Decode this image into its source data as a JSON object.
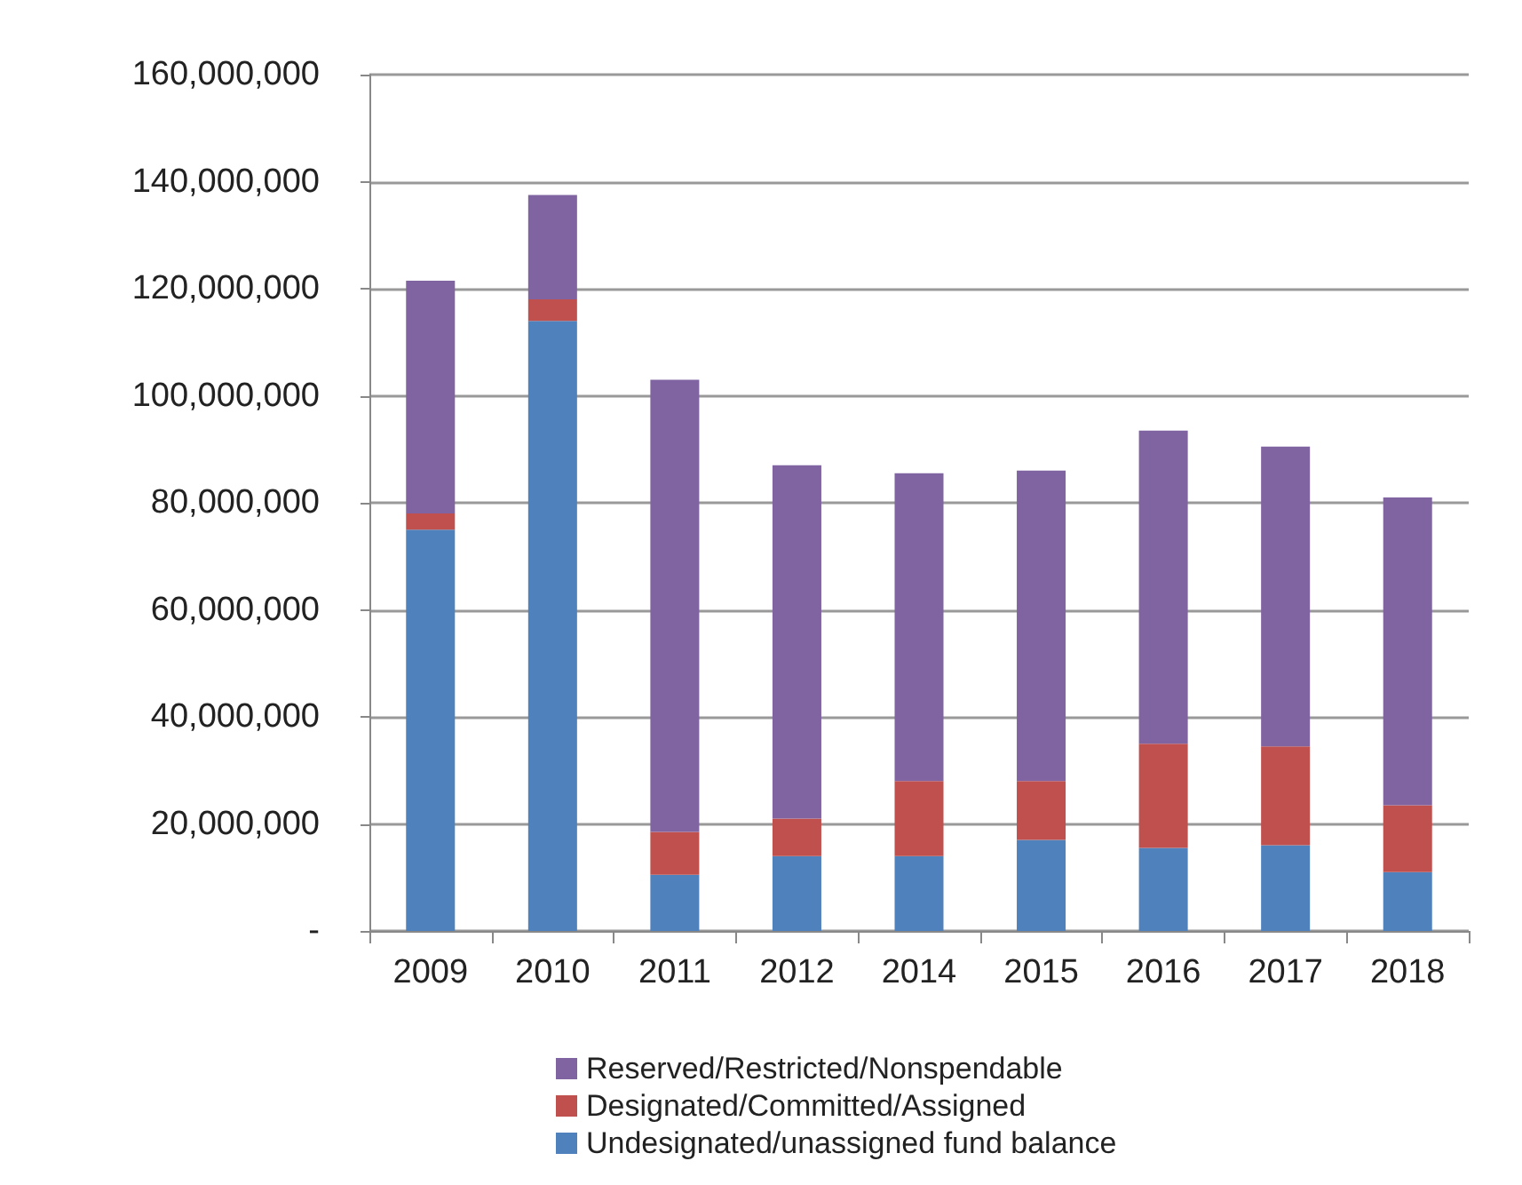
{
  "chart_data": {
    "type": "bar",
    "stacked": true,
    "categories": [
      "2009",
      "2010",
      "2011",
      "2012",
      "2014",
      "2015",
      "2016",
      "2017",
      "2018"
    ],
    "series": [
      {
        "name": "Undesignated/unassigned fund balance",
        "color": "#4f81bd",
        "values": [
          75000000,
          114000000,
          10500000,
          14000000,
          14000000,
          17000000,
          15500000,
          16000000,
          11000000
        ]
      },
      {
        "name": "Designated/Committed/Assigned",
        "color": "#c0504d",
        "values": [
          3000000,
          4000000,
          8000000,
          7000000,
          14000000,
          11000000,
          19500000,
          18500000,
          12500000
        ]
      },
      {
        "name": "Reserved/Restricted/Nonspendable",
        "color": "#8064a2",
        "values": [
          43500000,
          19500000,
          84500000,
          66000000,
          57500000,
          58000000,
          58500000,
          56000000,
          57500000
        ]
      }
    ],
    "ylim": [
      0,
      160000000
    ],
    "yticks": [
      {
        "value": 0,
        "label": "-"
      },
      {
        "value": 20000000,
        "label": "20,000,000"
      },
      {
        "value": 40000000,
        "label": "40,000,000"
      },
      {
        "value": 60000000,
        "label": "60,000,000"
      },
      {
        "value": 80000000,
        "label": "80,000,000"
      },
      {
        "value": 100000000,
        "label": "100,000,000"
      },
      {
        "value": 120000000,
        "label": "120,000,000"
      },
      {
        "value": 140000000,
        "label": "140,000,000"
      },
      {
        "value": 160000000,
        "label": "160,000,000"
      }
    ],
    "grid": "y",
    "legend": "bottom"
  }
}
